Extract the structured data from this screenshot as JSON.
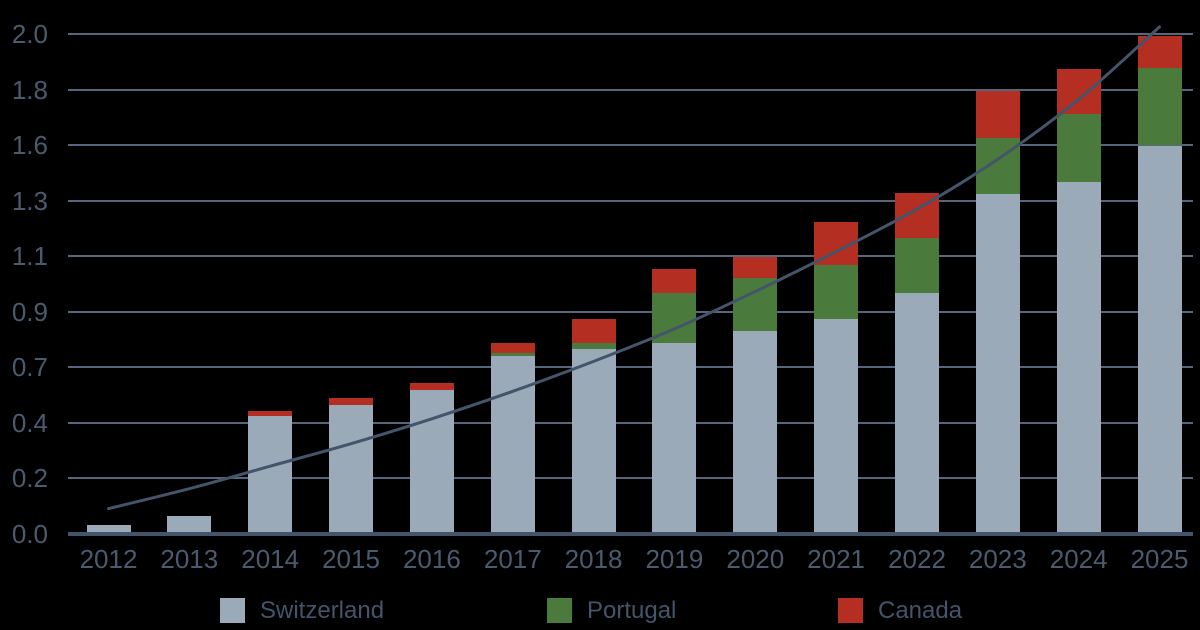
{
  "chart_data": {
    "type": "bar",
    "stacked": true,
    "title": "",
    "categories": [
      "2012",
      "2013",
      "2014",
      "2015",
      "2016",
      "2017",
      "2018",
      "2019",
      "2020",
      "2021",
      "2022",
      "2023",
      "2024",
      "2025"
    ],
    "series": [
      {
        "name": "Switzerland",
        "color": "#9aaab9",
        "values": [
          0.035,
          0.07,
          0.47,
          0.515,
          0.575,
          0.71,
          0.74,
          0.765,
          0.81,
          0.86,
          0.965,
          1.36,
          1.41,
          1.555
        ]
      },
      {
        "name": "Portugal",
        "color": "#4a7a3c",
        "values": [
          0,
          0,
          0,
          0,
          0,
          0.015,
          0.025,
          0.2,
          0.215,
          0.215,
          0.22,
          0.225,
          0.27,
          0.31
        ]
      },
      {
        "name": "Canada",
        "color": "#b42e22",
        "values": [
          0,
          0,
          0.02,
          0.03,
          0.03,
          0.04,
          0.095,
          0.095,
          0.085,
          0.175,
          0.18,
          0.19,
          0.18,
          0.13
        ]
      }
    ],
    "totals": [
      0.035,
      0.07,
      0.49,
      0.545,
      0.605,
      0.765,
      0.86,
      1.06,
      1.11,
      1.25,
      1.365,
      1.775,
      1.86,
      1.995
    ],
    "trend_line": {
      "color": "#44546a",
      "values": [
        0.1,
        0.18,
        0.27,
        0.36,
        0.46,
        0.57,
        0.69,
        0.82,
        0.97,
        1.13,
        1.3,
        1.5,
        1.74,
        2.03
      ]
    },
    "y_axis": {
      "tick_labels": [
        "0.0",
        "0.2",
        "0.4",
        "0.7",
        "0.9",
        "1.1",
        "1.3",
        "1.6",
        "1.8",
        "2.0"
      ],
      "tick_values": [
        0,
        0.2222,
        0.4444,
        0.6667,
        0.8889,
        1.1111,
        1.3333,
        1.5556,
        1.7778,
        2.0
      ],
      "range": [
        0,
        2.0
      ]
    },
    "grid": true,
    "legend_position": "bottom",
    "background_color": "#000000",
    "text_color": "#4a5b70"
  }
}
